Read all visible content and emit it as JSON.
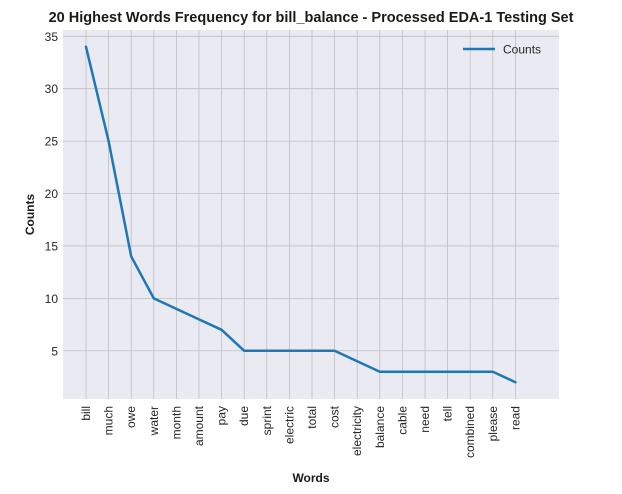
{
  "chart_data": {
    "type": "line",
    "title": "20 Highest Words Frequency for bill_balance - Processed EDA-1 Testing Set",
    "xlabel": "Words",
    "ylabel": "Counts",
    "categories": [
      "bill",
      "much",
      "owe",
      "water",
      "month",
      "amount",
      "pay",
      "due",
      "sprint",
      "electric",
      "total",
      "cost",
      "electricity",
      "balance",
      "cable",
      "need",
      "tell",
      "combined",
      "please",
      "read"
    ],
    "series": [
      {
        "name": "Counts",
        "values": [
          34,
          25,
          14,
          10,
          9,
          8,
          7,
          5,
          5,
          5,
          5,
          5,
          4,
          3,
          3,
          3,
          3,
          3,
          3,
          2
        ],
        "color": "#1f77b4"
      }
    ],
    "yticks": [
      5,
      10,
      15,
      20,
      25,
      30,
      35
    ],
    "ylim": [
      0.4,
      35.6
    ],
    "grid": true,
    "legend": "top-right",
    "background": "#eaeaf2",
    "grid_color": "#c0c0c0"
  }
}
